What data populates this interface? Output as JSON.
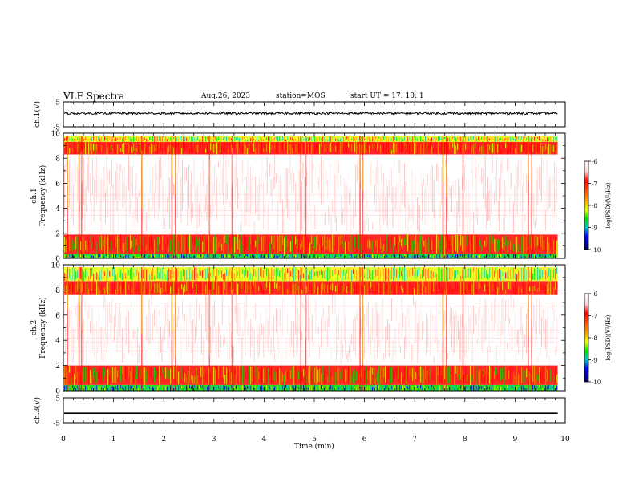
{
  "header": {
    "title": "VLF Spectra",
    "date": "Aug.26, 2023",
    "station": "station=MOS",
    "start": "start UT =   17: 10: 1"
  },
  "chart_data": [
    {
      "panel": "ch1-waveform",
      "type": "line",
      "ylabel": "ch.1(V)",
      "ylim": [
        -5,
        5
      ],
      "y_ticks": [
        "5",
        "-5"
      ],
      "x": [
        0,
        1,
        2,
        3,
        4,
        5,
        6,
        7,
        8,
        9,
        9.85
      ],
      "values": [
        0.4,
        0.4,
        0.4,
        0.4,
        0.4,
        0.4,
        0.4,
        0.4,
        0.4,
        0.4,
        0.4
      ],
      "noise_amplitude": 0.4,
      "color": "#000000"
    },
    {
      "panel": "ch1-spectrogram",
      "type": "heatmap",
      "ylabel_line1": "ch.1",
      "ylabel_line2": "Frequency (kHz)",
      "ylim": [
        0,
        10
      ],
      "y_ticks": [
        "0",
        "2",
        "4",
        "6",
        "8",
        "10"
      ],
      "xlim": [
        0,
        10
      ],
      "data_extent_min": 9.85,
      "bands": [
        {
          "f0": 9.3,
          "f1": 9.75,
          "level": "yellow-green"
        },
        {
          "f0": 8.3,
          "f1": 9.3,
          "level": "red"
        },
        {
          "f0": 1.9,
          "f1": 8.3,
          "level": "sparse-red"
        },
        {
          "f0": 0.35,
          "f1": 1.9,
          "level": "red-dense"
        },
        {
          "f0": 0.0,
          "f1": 0.35,
          "level": "green-blue"
        }
      ],
      "bright_columns_min": [
        0.07,
        0.3,
        0.35,
        1.55,
        2.15,
        2.22,
        2.9,
        3.35,
        4.72,
        4.82,
        5.9,
        5.95,
        7.55,
        7.62,
        7.95,
        9.25,
        9.32
      ],
      "colorbar": {
        "label": "log(PSD)(V²/Hz)",
        "ticks": [
          "-6",
          "-7",
          "-8",
          "-9",
          "-10"
        ]
      }
    },
    {
      "panel": "ch2-spectrogram",
      "type": "heatmap",
      "ylabel_line1": "ch.2",
      "ylabel_line2": "Frequency (kHz)",
      "ylim": [
        0,
        10
      ],
      "y_ticks": [
        "0",
        "2",
        "4",
        "6",
        "8",
        "10"
      ],
      "xlim": [
        0,
        10
      ],
      "data_extent_min": 9.85,
      "bands": [
        {
          "f0": 8.7,
          "f1": 9.8,
          "level": "yellow-green"
        },
        {
          "f0": 7.6,
          "f1": 8.7,
          "level": "red"
        },
        {
          "f0": 2.0,
          "f1": 7.6,
          "level": "sparse-red"
        },
        {
          "f0": 0.45,
          "f1": 2.0,
          "level": "red-dense"
        },
        {
          "f0": 0.0,
          "f1": 0.45,
          "level": "green-blue"
        }
      ],
      "bright_columns_min": [
        0.07,
        0.3,
        0.35,
        1.55,
        2.15,
        2.22,
        2.9,
        3.35,
        4.72,
        4.82,
        5.9,
        5.95,
        7.55,
        7.62,
        7.95,
        9.25,
        9.32
      ],
      "colorbar": {
        "label": "log(PSD)(V²/Hz)",
        "ticks": [
          "-6",
          "-7",
          "-8",
          "-9",
          "-10"
        ]
      }
    },
    {
      "panel": "ch3-waveform",
      "type": "line",
      "ylabel": "ch.3(V)",
      "ylim": [
        -5,
        5
      ],
      "y_ticks": [
        "5",
        "-5"
      ],
      "x": [
        0,
        9.85
      ],
      "values": [
        -1.2,
        -1.2
      ],
      "noise_amplitude": 0,
      "color": "#000000",
      "xlabel": "Time (min)",
      "x_ticks": [
        "0",
        "1",
        "2",
        "3",
        "4",
        "5",
        "6",
        "7",
        "8",
        "9",
        "10"
      ],
      "xlim": [
        0,
        10
      ]
    }
  ],
  "colors": {
    "red": "#ff0000",
    "orange": "#ff8c00",
    "yellow": "#e8ff00",
    "green": "#00e000",
    "cyan": "#00c8c8",
    "blue": "#0000ff",
    "navy": "#000050"
  }
}
